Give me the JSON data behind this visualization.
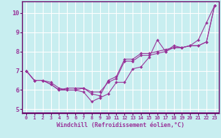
{
  "xlabel": "Windchill (Refroidissement éolien,°C)",
  "background_color": "#c8eef0",
  "line_color": "#993399",
  "spine_color": "#660066",
  "xlim": [
    -0.5,
    23.5
  ],
  "ylim": [
    4.8,
    10.6
  ],
  "yticks": [
    5,
    6,
    7,
    8,
    9,
    10
  ],
  "xticks": [
    0,
    1,
    2,
    3,
    4,
    5,
    6,
    7,
    8,
    9,
    10,
    11,
    12,
    13,
    14,
    15,
    16,
    17,
    18,
    19,
    20,
    21,
    22,
    23
  ],
  "series": [
    [
      7.0,
      6.5,
      6.5,
      6.4,
      6.1,
      6.0,
      6.0,
      5.9,
      5.4,
      5.6,
      5.8,
      6.4,
      6.4,
      7.1,
      7.2,
      7.7,
      8.6,
      8.0,
      8.3,
      8.2,
      8.3,
      8.6,
      9.5,
      10.4
    ],
    [
      7.0,
      6.5,
      6.5,
      6.3,
      6.0,
      6.0,
      6.0,
      6.1,
      5.9,
      5.9,
      6.4,
      6.6,
      7.5,
      7.5,
      7.8,
      7.8,
      7.9,
      8.0,
      8.2,
      8.2,
      8.3,
      8.3,
      8.5,
      10.4
    ],
    [
      7.0,
      6.5,
      6.5,
      6.3,
      6.0,
      6.1,
      6.1,
      6.1,
      5.8,
      5.7,
      6.5,
      6.7,
      7.6,
      7.6,
      7.9,
      7.9,
      8.0,
      8.1,
      8.2,
      8.2,
      8.3,
      8.3,
      8.5,
      10.4
    ]
  ],
  "grid_color": "#ffffff",
  "tick_fontsize": 5.0,
  "xlabel_fontsize": 6.0
}
